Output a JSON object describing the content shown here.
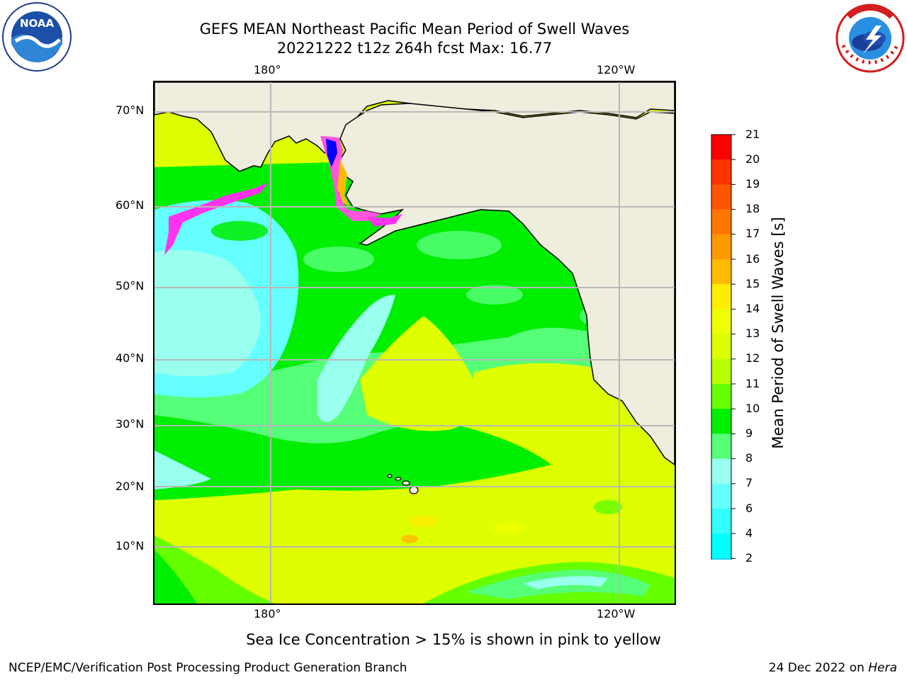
{
  "header": {
    "title_line1": "GEFS MEAN Northeast Pacific Mean Period of Swell Waves",
    "title_line2": "20221222 t12z 264h fcst   Max: 16.77"
  },
  "logos": {
    "left": {
      "icon": "noaa-logo",
      "text": "NOAA"
    },
    "right": {
      "icon": "national-weather-service-logo",
      "text": "NATIONAL WEATHER SERVICE"
    }
  },
  "map": {
    "top_ticks": [
      "180°",
      "120°W"
    ],
    "bottom_ticks": [
      "180°",
      "120°W"
    ],
    "lat_ticks": [
      "70°N",
      "60°N",
      "50°N",
      "40°N",
      "30°N",
      "20°N",
      "10°N"
    ],
    "colors": {
      "land": "#efedde",
      "coast": "#000000",
      "grid": "#b8b8b8"
    }
  },
  "colorbar": {
    "title": "Mean Period of Swell Waves [s]",
    "labels": [
      "21",
      "20",
      "19",
      "18",
      "17",
      "16",
      "15",
      "14",
      "13",
      "12",
      "11",
      "10",
      "9",
      "8",
      "7",
      "6",
      "4",
      "2"
    ],
    "colors_top_to_bottom": [
      "#ff0000",
      "#ff3300",
      "#ff5500",
      "#ff7700",
      "#ff9900",
      "#ffbb00",
      "#ffee00",
      "#eeff00",
      "#ddff00",
      "#b8ff00",
      "#66ff00",
      "#00ee00",
      "#55ff77",
      "#99ffee",
      "#66ffff",
      "#33ffff",
      "#00ffff",
      "#00ccff",
      "#0077ff",
      "#0000ff"
    ]
  },
  "footer": {
    "ice_note": "Sea Ice Concentration > 15% is shown in pink to yellow",
    "left": "NCEP/EMC/Verification Post Processing Product Generation Branch",
    "right_date": "24 Dec 2022 on",
    "right_machine": "Hera"
  }
}
